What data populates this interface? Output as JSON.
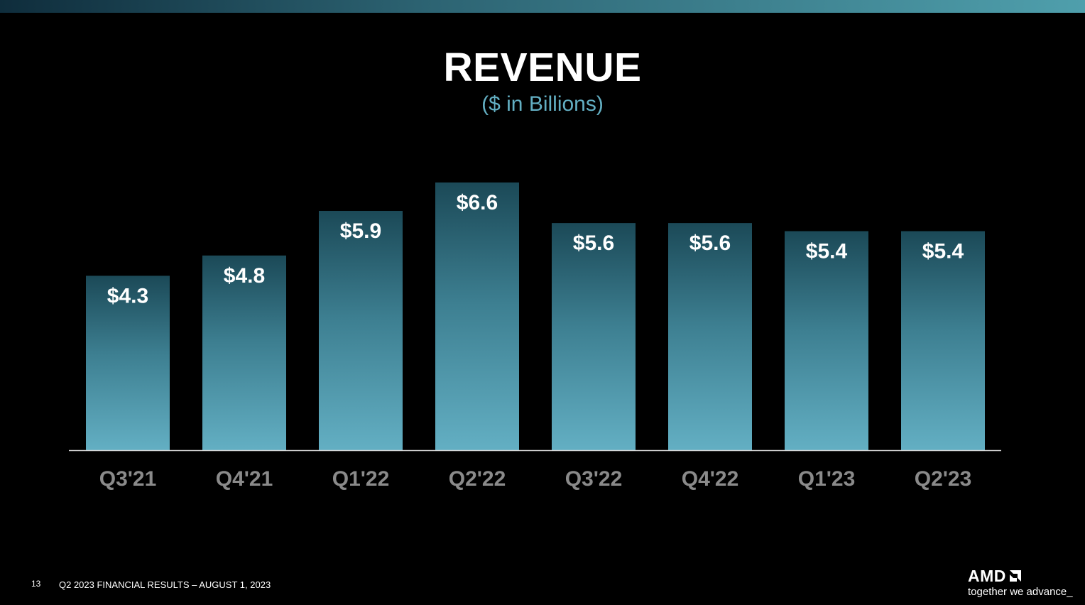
{
  "title": "REVENUE",
  "subtitle": "($ in Billions)",
  "colors": {
    "background": "#000000",
    "bar_top": "#1b4957",
    "bar_bottom": "#63afc3",
    "subtitle": "#63afc3",
    "category_label": "#8a8a8a",
    "baseline": "#d9d9d9"
  },
  "chart_data": {
    "type": "bar",
    "title": "REVENUE",
    "subtitle": "($ in Billions)",
    "categories": [
      "Q3'21",
      "Q4'21",
      "Q1'22",
      "Q2'22",
      "Q3'22",
      "Q4'22",
      "Q1'23",
      "Q2'23"
    ],
    "values": [
      4.3,
      4.8,
      5.9,
      6.6,
      5.6,
      5.6,
      5.4,
      5.4
    ],
    "value_labels": [
      "$4.3",
      "$4.8",
      "$5.9",
      "$6.6",
      "$5.6",
      "$5.6",
      "$5.4",
      "$5.4"
    ],
    "xlabel": "",
    "ylabel": "",
    "grid": false,
    "legend": "none"
  },
  "footer": {
    "page_number": "13",
    "text": "Q2 2023 FINANCIAL RESULTS – AUGUST 1, 2023"
  },
  "logo": {
    "wordmark": "AMD",
    "tagline": "together we advance_",
    "icon": "amd-arrow-icon"
  }
}
